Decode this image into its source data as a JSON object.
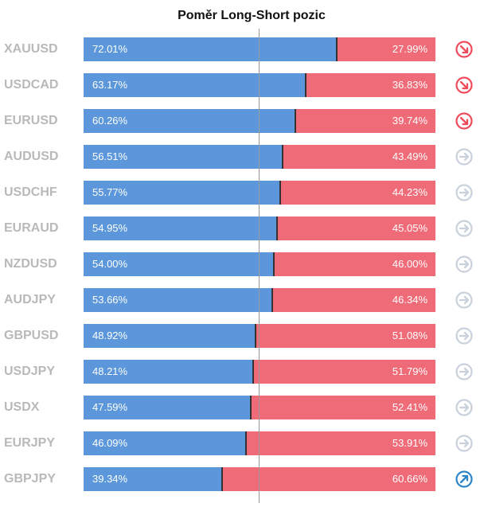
{
  "chart_data": {
    "type": "bar",
    "title": "Poměr Long-Short pozic",
    "categories": [
      "XAUUSD",
      "USDCAD",
      "EURUSD",
      "AUDUSD",
      "USDCHF",
      "EURAUD",
      "NZDUSD",
      "AUDJPY",
      "GBPUSD",
      "USDJPY",
      "USDX",
      "EURJPY",
      "GBPJPY"
    ],
    "series": [
      {
        "values": [
          72.01,
          63.17,
          60.26,
          56.51,
          55.77,
          54.95,
          54.0,
          53.66,
          48.92,
          48.21,
          47.59,
          46.09,
          39.34
        ]
      },
      {
        "values": [
          27.99,
          36.83,
          39.74,
          43.49,
          44.23,
          45.05,
          46.0,
          46.34,
          51.08,
          51.79,
          52.41,
          53.91,
          60.66
        ]
      }
    ],
    "long_labels": [
      "72.01%",
      "63.17%",
      "60.26%",
      "56.51%",
      "55.77%",
      "54.95%",
      "54.00%",
      "53.66%",
      "48.92%",
      "48.21%",
      "47.59%",
      "46.09%",
      "39.34%"
    ],
    "short_labels": [
      "27.99%",
      "36.83%",
      "39.74%",
      "43.49%",
      "44.23%",
      "45.05%",
      "46.00%",
      "46.34%",
      "51.08%",
      "51.79%",
      "52.41%",
      "53.91%",
      "60.66%"
    ],
    "signals": [
      "down",
      "down",
      "down",
      "neutral",
      "neutral",
      "neutral",
      "neutral",
      "neutral",
      "neutral",
      "neutral",
      "neutral",
      "neutral",
      "up"
    ],
    "ylim": [
      0,
      100
    ]
  },
  "colors": {
    "long": "#5b97da",
    "short": "#f06b78",
    "symbol_text": "#b9b9b9",
    "signal_down": "#ef4b5b",
    "signal_neutral": "#c9d1dc",
    "signal_up": "#2e86c8"
  },
  "icons": {
    "down": "arrow-down-right-circle-icon",
    "neutral": "arrow-right-circle-icon",
    "up": "arrow-up-right-circle-icon"
  }
}
